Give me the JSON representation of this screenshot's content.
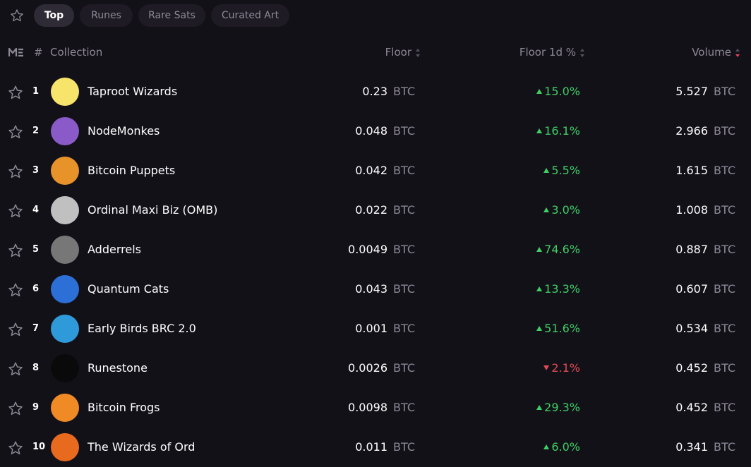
{
  "tabs": [
    {
      "label": "Top",
      "active": true
    },
    {
      "label": "Runes",
      "active": false
    },
    {
      "label": "Rare Sats",
      "active": false
    },
    {
      "label": "Curated Art",
      "active": false
    }
  ],
  "table": {
    "headers": {
      "rank": "#",
      "collection": "Collection",
      "floor": "Floor",
      "floor_change": "Floor 1d %",
      "volume": "Volume"
    },
    "sorted_by": "volume",
    "sort_direction": "descending",
    "unit": "BTC",
    "rows": [
      {
        "rank": "1",
        "name": "Taproot Wizards",
        "floor": "0.23",
        "change": "15.0%",
        "direction": "up",
        "volume": "5.527",
        "avatar_color": "#f7e46a"
      },
      {
        "rank": "2",
        "name": "NodeMonkes",
        "floor": "0.048",
        "change": "16.1%",
        "direction": "up",
        "volume": "2.966",
        "avatar_color": "#8a5ac8"
      },
      {
        "rank": "3",
        "name": "Bitcoin Puppets",
        "floor": "0.042",
        "change": "5.5%",
        "direction": "up",
        "volume": "1.615",
        "avatar_color": "#e8922a"
      },
      {
        "rank": "4",
        "name": "Ordinal Maxi Biz (OMB)",
        "floor": "0.022",
        "change": "3.0%",
        "direction": "up",
        "volume": "1.008",
        "avatar_color": "#c0c0c0"
      },
      {
        "rank": "5",
        "name": "Adderrels",
        "floor": "0.0049",
        "change": "74.6%",
        "direction": "up",
        "volume": "0.887",
        "avatar_color": "#777777"
      },
      {
        "rank": "6",
        "name": "Quantum Cats",
        "floor": "0.043",
        "change": "13.3%",
        "direction": "up",
        "volume": "0.607",
        "avatar_color": "#2c6fd6"
      },
      {
        "rank": "7",
        "name": "Early Birds BRC 2.0",
        "floor": "0.001",
        "change": "51.6%",
        "direction": "up",
        "volume": "0.534",
        "avatar_color": "#2f9ad9"
      },
      {
        "rank": "8",
        "name": "Runestone",
        "floor": "0.0026",
        "change": "2.1%",
        "direction": "down",
        "volume": "0.452",
        "avatar_color": "#0a0a0a"
      },
      {
        "rank": "9",
        "name": "Bitcoin Frogs",
        "floor": "0.0098",
        "change": "29.3%",
        "direction": "up",
        "volume": "0.452",
        "avatar_color": "#f08a24"
      },
      {
        "rank": "10",
        "name": "The Wizards of Ord",
        "floor": "0.011",
        "change": "6.0%",
        "direction": "up",
        "volume": "0.341",
        "avatar_color": "#e86a1e"
      }
    ]
  }
}
